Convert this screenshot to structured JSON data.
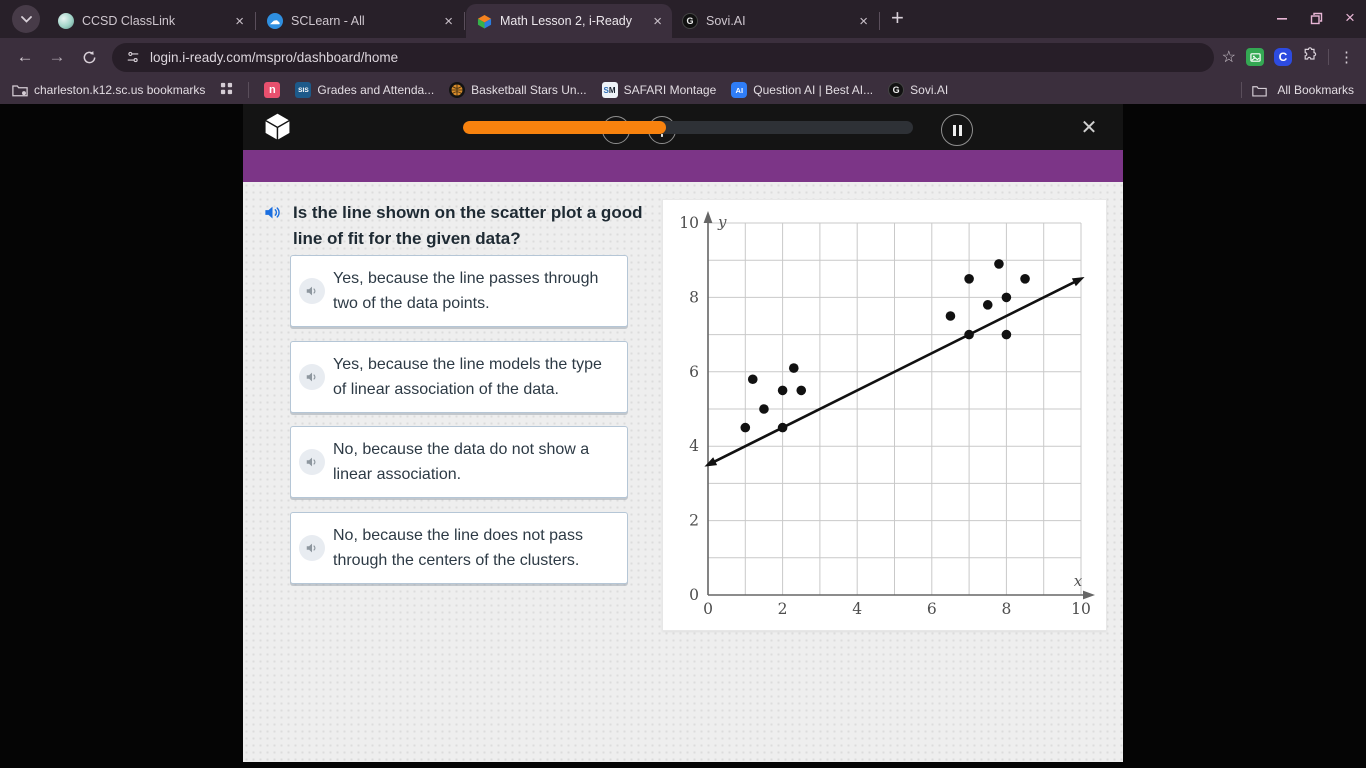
{
  "browser": {
    "tabs": [
      {
        "title": "CCSD ClassLink",
        "icon": "classlink-favicon",
        "active": false
      },
      {
        "title": "SCLearn - All",
        "icon": "sclearn-favicon",
        "active": false
      },
      {
        "title": "Math Lesson 2, i-Ready",
        "icon": "iready-cube-favicon",
        "active": true
      },
      {
        "title": "Sovi.AI",
        "icon": "sovi-favicon",
        "active": false
      }
    ],
    "url": "login.i-ready.com/mspro/dashboard/home",
    "bookmarks_folder_label": "charleston.k12.sc.us bookmarks",
    "bookmarks": [
      {
        "label": "",
        "icon": "n-red-favicon"
      },
      {
        "label": "Grades and Attenda...",
        "icon": "sis-favicon",
        "icon_text": "SIS"
      },
      {
        "label": "Basketball Stars Un...",
        "icon": "basketball-favicon"
      },
      {
        "label": "SAFARI Montage",
        "icon": "sm-favicon",
        "icon_text": "SM"
      },
      {
        "label": "Question AI | Best AI...",
        "icon": "ai-favicon",
        "icon_text": "AI"
      },
      {
        "label": "Sovi.AI",
        "icon": "sovi-favicon",
        "icon_text": "G"
      }
    ],
    "all_bookmarks_label": "All Bookmarks",
    "theme": {
      "tabbar_bg": "#282029",
      "toolbar_bg": "#3b2f3d",
      "accent_pink": "#e9b6d6"
    }
  },
  "lesson": {
    "progress_percent": 45,
    "progress_color": "#f8820e",
    "banner_color": "#7c3587",
    "question": "Is the line shown on the scatter plot a good line of fit for the given data?",
    "answers": [
      "Yes, because the line passes through two of the data points.",
      "Yes, because the line models the type of linear association of the data.",
      "No, because the data do not show a linear association.",
      "No, because the line does not pass through the centers of the clusters."
    ]
  },
  "chart_data": {
    "type": "scatter",
    "title": "",
    "xlabel": "x",
    "ylabel": "y",
    "xlim": [
      0,
      10
    ],
    "ylim": [
      0,
      10
    ],
    "grid": true,
    "grid_step": 1,
    "x_ticks": [
      0,
      2,
      4,
      6,
      8,
      10
    ],
    "y_ticks": [
      0,
      2,
      4,
      6,
      8,
      10
    ],
    "points": [
      [
        1,
        4.5
      ],
      [
        1.2,
        5.8
      ],
      [
        1.5,
        5.0
      ],
      [
        2,
        4.5
      ],
      [
        2,
        5.5
      ],
      [
        2.3,
        6.1
      ],
      [
        2.5,
        5.5
      ],
      [
        6.5,
        7.5
      ],
      [
        7,
        7.0
      ],
      [
        7,
        8.5
      ],
      [
        7.5,
        7.8
      ],
      [
        7.8,
        8.9
      ],
      [
        8,
        7.0
      ],
      [
        8,
        8.0
      ],
      [
        8.5,
        8.5
      ]
    ],
    "fit_line": {
      "x1": 0,
      "y1": 3.5,
      "x2": 10,
      "y2": 8.5
    },
    "point_color": "#111111",
    "line_color": "#111111"
  }
}
